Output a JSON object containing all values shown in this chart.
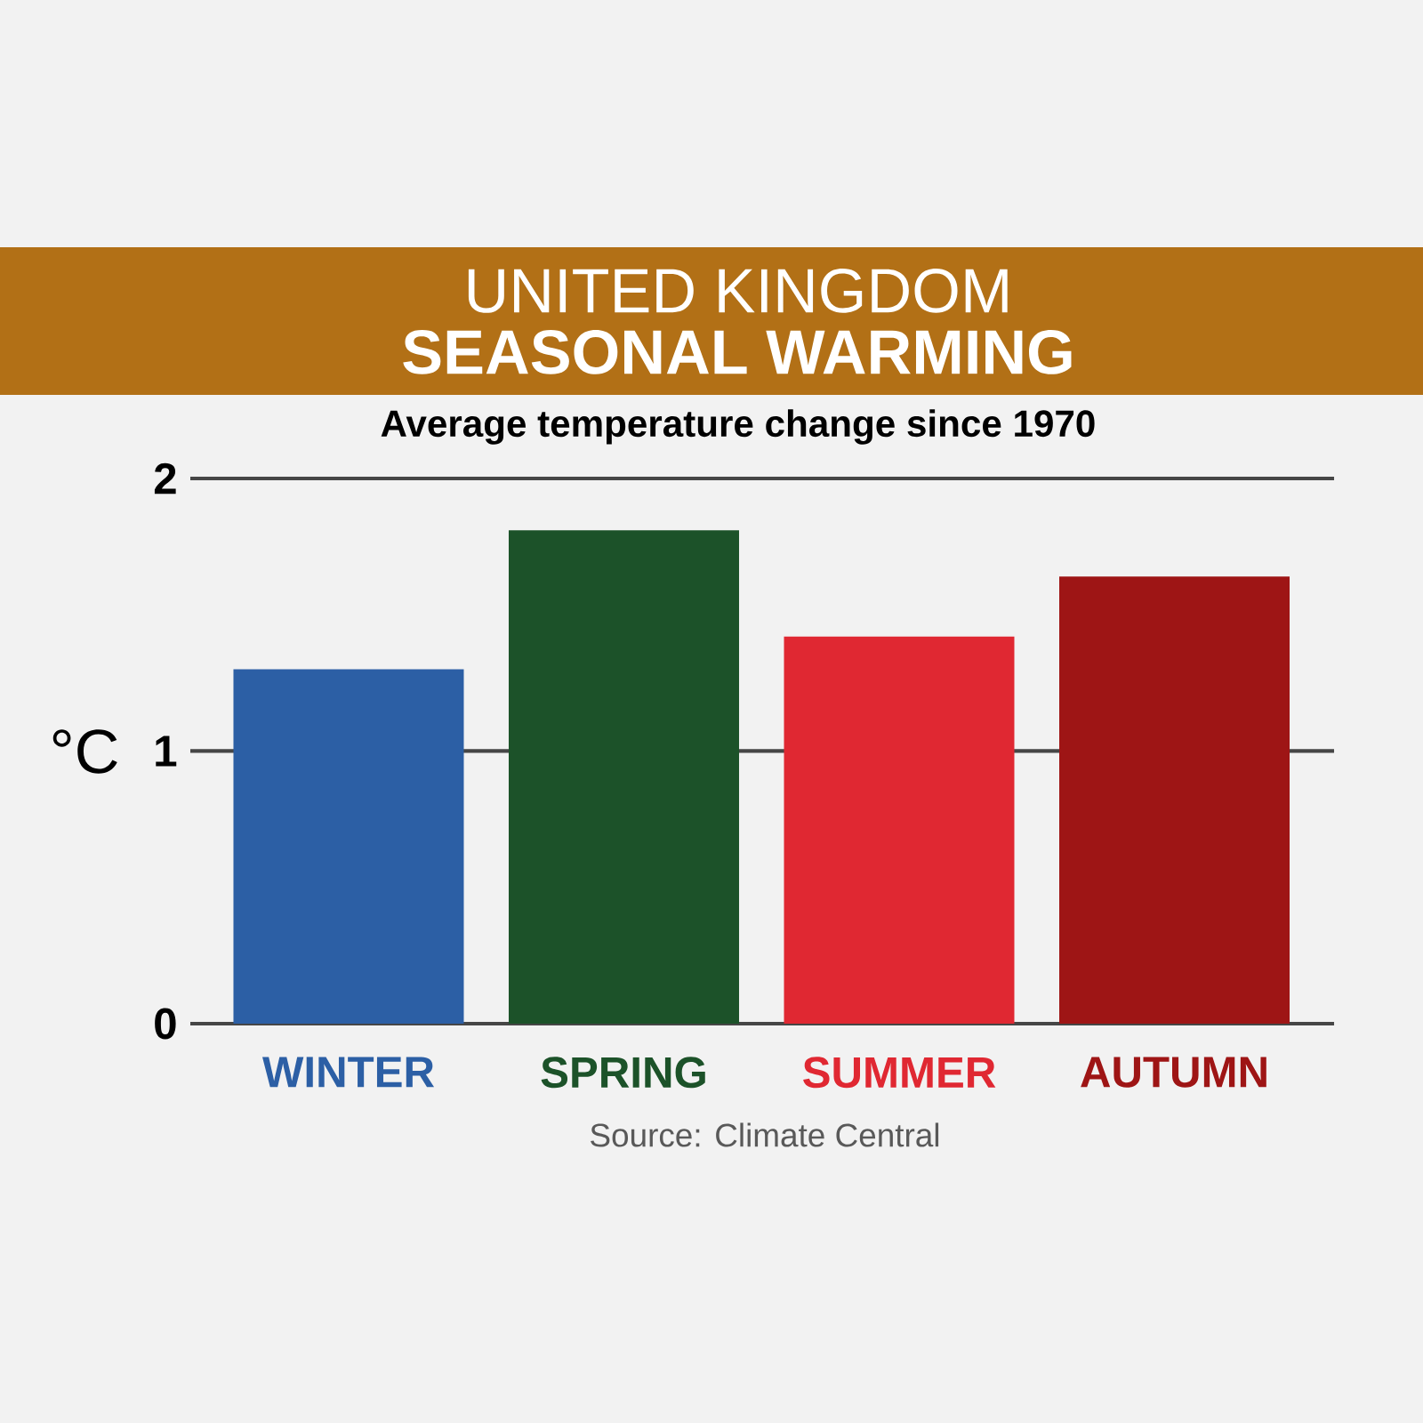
{
  "chart_data": {
    "type": "bar",
    "title": "UNITED KINGDOM",
    "subtitle": "SEASONAL WARMING",
    "ylabel": "°C",
    "annotations": [
      "Average temperature change since 1970",
      "Source: Climate Central"
    ],
    "categories": [
      "WINTER",
      "SPRING",
      "SUMMER",
      "AUTUMN"
    ],
    "values": [
      1.3,
      1.81,
      1.42,
      1.64
    ],
    "colors": [
      "#2c5fa5",
      "#1c5229",
      "#e02832",
      "#9e1515"
    ],
    "ylim": [
      0,
      2
    ],
    "yticks": [
      0,
      1,
      2
    ],
    "grid": "y"
  }
}
